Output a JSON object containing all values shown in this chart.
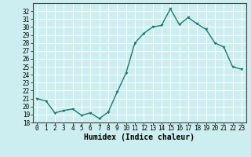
{
  "xlabel": "Humidex (Indice chaleur)",
  "ylabel": "",
  "x": [
    0,
    1,
    2,
    3,
    4,
    5,
    6,
    7,
    8,
    9,
    10,
    11,
    12,
    13,
    14,
    15,
    16,
    17,
    18,
    19,
    20,
    21,
    22,
    23
  ],
  "y": [
    21.0,
    20.7,
    19.2,
    19.5,
    19.7,
    18.9,
    19.2,
    18.5,
    19.3,
    21.8,
    24.2,
    28.0,
    29.2,
    30.0,
    30.2,
    32.3,
    30.3,
    31.2,
    30.4,
    29.7,
    28.0,
    27.5,
    25.0,
    24.7
  ],
  "ylim": [
    18,
    33
  ],
  "xlim": [
    -0.5,
    23.5
  ],
  "yticks": [
    18,
    19,
    20,
    21,
    22,
    23,
    24,
    25,
    26,
    27,
    28,
    29,
    30,
    31,
    32
  ],
  "xticks": [
    0,
    1,
    2,
    3,
    4,
    5,
    6,
    7,
    8,
    9,
    10,
    11,
    12,
    13,
    14,
    15,
    16,
    17,
    18,
    19,
    20,
    21,
    22,
    23
  ],
  "line_color": "#1a7a6e",
  "marker_color": "#1a7a6e",
  "bg_color": "#cceef0",
  "grid_color": "#ffffff",
  "axes_face_color": "#cceef0",
  "tick_fontsize": 5.5,
  "label_fontsize": 7,
  "marker_size": 2.0,
  "line_width": 1.0
}
